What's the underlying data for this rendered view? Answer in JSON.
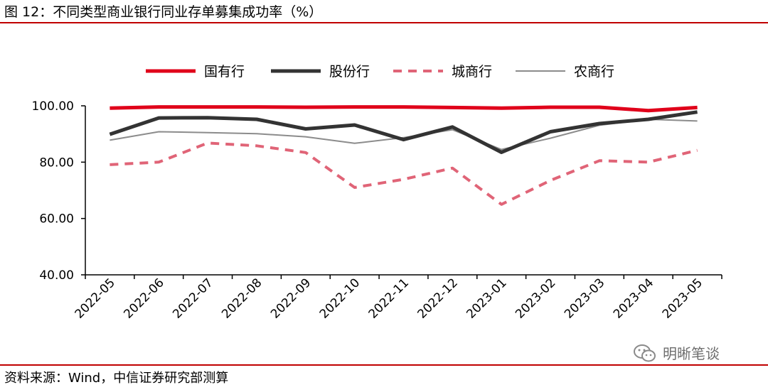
{
  "title": "图 12：不同类型商业银行同业存单募集成功率（%）",
  "source": "资料来源：Wind，中信证券研究部测算",
  "watermark": {
    "text": "明晰笔谈",
    "icon": "wechat-icon"
  },
  "chart_data": {
    "type": "line",
    "categories": [
      "2022-05",
      "2022-06",
      "2022-07",
      "2022-08",
      "2022-09",
      "2022-10",
      "2022-11",
      "2022-12",
      "2023-01",
      "2023-02",
      "2023-03",
      "2023-04",
      "2023-05"
    ],
    "series": [
      {
        "name": "国有行",
        "color": "#e0001a",
        "style": "solid-thick",
        "values": [
          99.2,
          99.6,
          99.6,
          99.6,
          99.5,
          99.6,
          99.6,
          99.4,
          99.2,
          99.5,
          99.5,
          98.3,
          99.4
        ]
      },
      {
        "name": "股份行",
        "color": "#333333",
        "style": "solid-thick",
        "values": [
          89.9,
          95.7,
          95.8,
          95.2,
          91.8,
          93.2,
          88.0,
          92.5,
          83.5,
          90.8,
          93.7,
          95.2,
          97.8
        ]
      },
      {
        "name": "城商行",
        "color": "#e06477",
        "style": "dashed",
        "values": [
          79.1,
          80.0,
          86.8,
          85.8,
          83.4,
          71.0,
          73.9,
          77.9,
          65.0,
          73.5,
          80.5,
          80.0,
          84.2
        ]
      },
      {
        "name": "农商行",
        "color": "#8c8c8c",
        "style": "solid-thin",
        "values": [
          87.8,
          90.8,
          90.5,
          90.1,
          89.0,
          86.7,
          88.7,
          91.5,
          84.5,
          88.5,
          93.1,
          95.2,
          94.6
        ]
      }
    ],
    "ylim": [
      40,
      100
    ],
    "yticks": [
      "100.00",
      "80.00",
      "60.00",
      "40.00"
    ],
    "ytick_values": [
      100,
      80,
      60,
      40
    ],
    "legend_position": "top",
    "grid": false
  }
}
